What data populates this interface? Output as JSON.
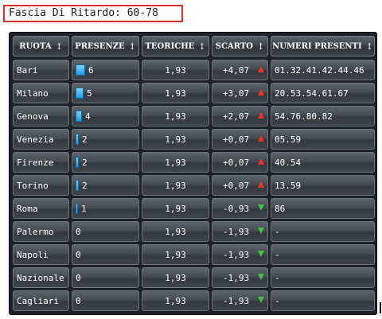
{
  "title": "Fascia Di Ritardo: 60-78",
  "headers": [
    "RUOTA",
    "PRESENZE",
    "TEORICHE",
    "SCARTO",
    "NUMERI PRESENTI"
  ],
  "sort_glyph": "↕",
  "colors": {
    "up_arrow": "#ff2e2e",
    "down_arrow": "#3ec43e",
    "bar": "#1f9be3"
  },
  "rows": [
    {
      "ruota": "Bari",
      "presenze": "6",
      "teoriche": "1,93",
      "scarto": "+4,07",
      "trend": "up",
      "numeri": "01.32.41.42.44.46"
    },
    {
      "ruota": "Milano",
      "presenze": "5",
      "teoriche": "1,93",
      "scarto": "+3,07",
      "trend": "up",
      "numeri": "20.53.54.61.67"
    },
    {
      "ruota": "Genova",
      "presenze": "4",
      "teoriche": "1,93",
      "scarto": "+2,07",
      "trend": "up",
      "numeri": "54.76.80.82"
    },
    {
      "ruota": "Venezia",
      "presenze": "2",
      "teoriche": "1,93",
      "scarto": "+0,07",
      "trend": "up",
      "numeri": "05.59"
    },
    {
      "ruota": "Firenze",
      "presenze": "2",
      "teoriche": "1,93",
      "scarto": "+0,07",
      "trend": "up",
      "numeri": "40.54"
    },
    {
      "ruota": "Torino",
      "presenze": "2",
      "teoriche": "1,93",
      "scarto": "+0,07",
      "trend": "up",
      "numeri": "13.59"
    },
    {
      "ruota": "Roma",
      "presenze": "1",
      "teoriche": "1,93",
      "scarto": "-0,93",
      "trend": "down",
      "numeri": "86"
    },
    {
      "ruota": "Palermo",
      "presenze": "0",
      "teoriche": "1,93",
      "scarto": "-1,93",
      "trend": "down",
      "numeri": "-"
    },
    {
      "ruota": "Napoli",
      "presenze": "0",
      "teoriche": "1,93",
      "scarto": "-1,93",
      "trend": "down",
      "numeri": "-"
    },
    {
      "ruota": "Nazionale",
      "presenze": "0",
      "teoriche": "1,93",
      "scarto": "-1,93",
      "trend": "down",
      "numeri": "-"
    },
    {
      "ruota": "Cagliari",
      "presenze": "0",
      "teoriche": "1,93",
      "scarto": "-1,93",
      "trend": "down",
      "numeri": "-"
    }
  ]
}
